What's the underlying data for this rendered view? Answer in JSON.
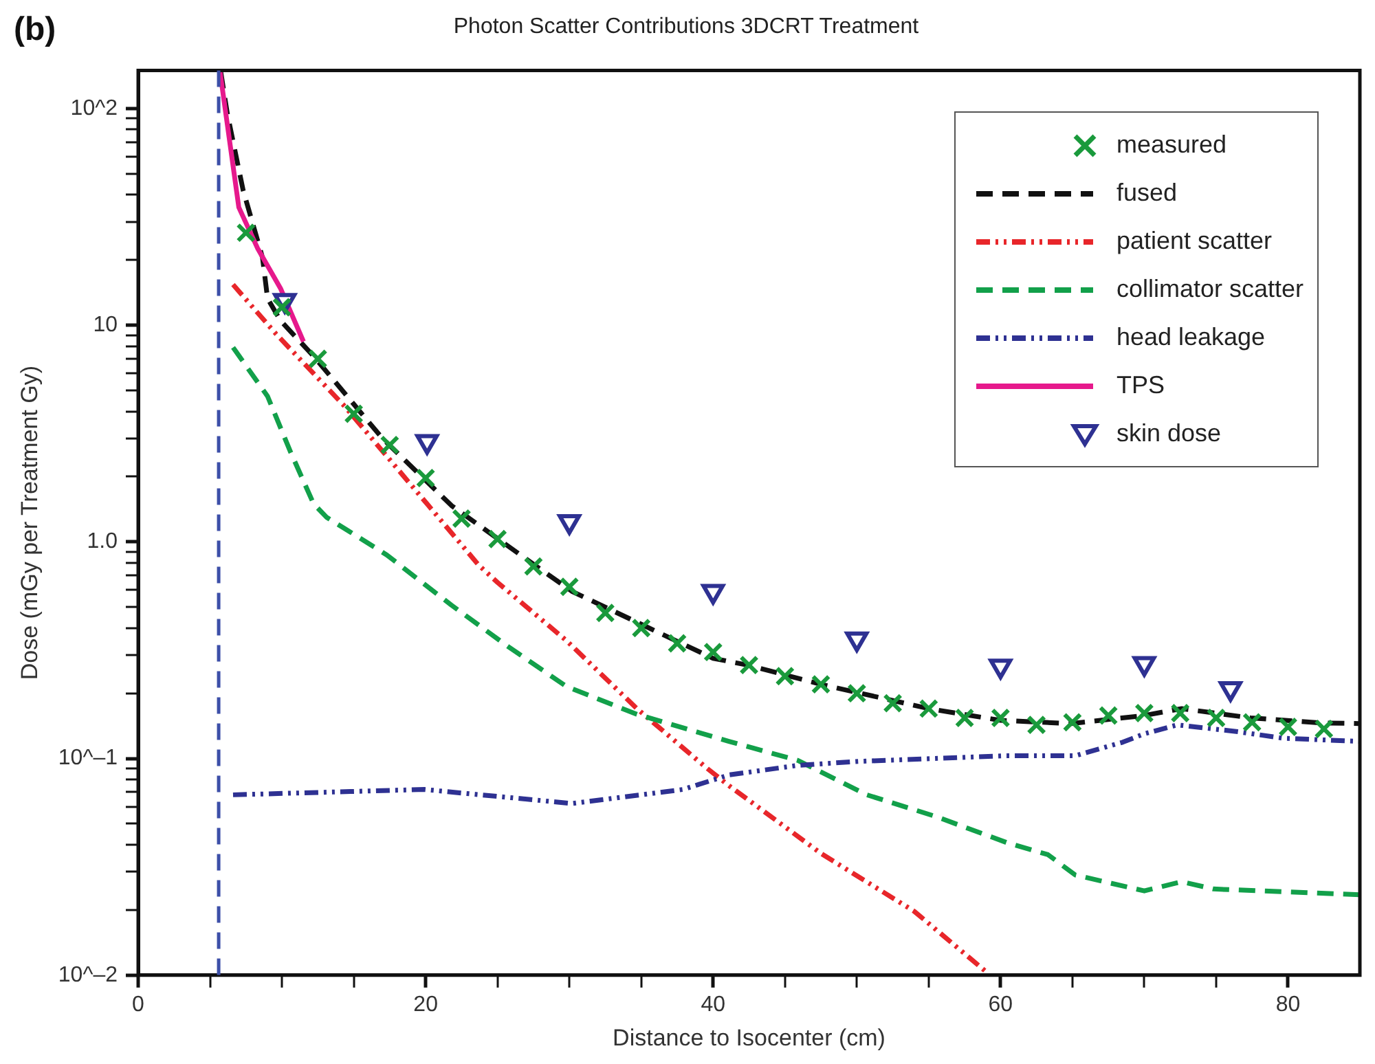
{
  "chart_data": {
    "type": "line",
    "title": "Photon Scatter Contributions 3DCRT Treatment",
    "xlabel": "Distance to Isocenter (cm)",
    "ylabel": "Dose (mGy per Treatment Gy)",
    "annotations": [
      "(b)"
    ],
    "log": "y",
    "grid": false,
    "legend": "top right",
    "xlim": [
      0,
      85
    ],
    "ylim": [
      0.01,
      150
    ],
    "xticks": [
      0,
      {
        "value": 5,
        "label": null
      },
      {
        "value": 10,
        "label": null
      },
      {
        "value": 15,
        "label": null
      },
      20,
      {
        "value": 25,
        "label": null
      },
      {
        "value": 30,
        "label": null
      },
      {
        "value": 35,
        "label": null
      },
      40,
      {
        "value": 45,
        "label": null
      },
      {
        "value": 50,
        "label": null
      },
      {
        "value": 55,
        "label": null
      },
      60,
      {
        "value": 65,
        "label": null
      },
      {
        "value": 70,
        "label": null
      },
      {
        "value": 75,
        "label": null
      },
      80
    ],
    "yticks": [
      {
        "value": 0.01,
        "label": "10^–2"
      },
      {
        "value": 0.02,
        "label": null
      },
      {
        "value": 0.03,
        "label": null
      },
      {
        "value": 0.04,
        "label": null
      },
      {
        "value": 0.05,
        "label": null
      },
      {
        "value": 0.06,
        "label": null
      },
      {
        "value": 0.07,
        "label": null
      },
      {
        "value": 0.08,
        "label": null
      },
      {
        "value": 0.09,
        "label": null
      },
      {
        "value": 0.1,
        "label": "10^–1"
      },
      {
        "value": 0.2,
        "label": null
      },
      {
        "value": 0.3,
        "label": null
      },
      {
        "value": 0.4,
        "label": null
      },
      {
        "value": 0.5,
        "label": null
      },
      {
        "value": 0.6,
        "label": null
      },
      {
        "value": 0.7,
        "label": null
      },
      {
        "value": 0.8,
        "label": null
      },
      {
        "value": 0.9,
        "label": null
      },
      {
        "value": 1,
        "label": "1.0"
      },
      {
        "value": 2,
        "label": null
      },
      {
        "value": 3,
        "label": null
      },
      {
        "value": 4,
        "label": null
      },
      {
        "value": 5,
        "label": null
      },
      {
        "value": 6,
        "label": null
      },
      {
        "value": 7,
        "label": null
      },
      {
        "value": 8,
        "label": null
      },
      {
        "value": 9,
        "label": null
      },
      {
        "value": 10,
        "label": "10"
      },
      {
        "value": 20,
        "label": null
      },
      {
        "value": 30,
        "label": null
      },
      {
        "value": 40,
        "label": null
      },
      {
        "value": 50,
        "label": null
      },
      {
        "value": 60,
        "label": null
      },
      {
        "value": 70,
        "label": null
      },
      {
        "value": 80,
        "label": null
      },
      {
        "value": 90,
        "label": null
      },
      {
        "value": 100,
        "label": "10^2"
      }
    ],
    "ref_lines": [
      {
        "axis": "x",
        "value": 5.6,
        "color": "#3c4fa8",
        "line_style": "dashed"
      }
    ],
    "series": [
      {
        "name": "measured",
        "type": "scatter",
        "marker": "cross",
        "color": "#1a9a3c",
        "x": [
          7.5,
          10,
          12.5,
          15,
          17.5,
          20,
          22.5,
          25,
          27.5,
          30,
          32.5,
          35,
          37.5,
          40,
          42.5,
          45,
          47.5,
          50,
          52.5,
          55,
          57.5,
          60,
          62.5,
          65,
          67.5,
          70,
          72.5,
          75,
          77.5,
          80,
          82.5
        ],
        "values": [
          26.7,
          12.1,
          7.0,
          3.9,
          2.8,
          1.97,
          1.28,
          1.03,
          0.77,
          0.62,
          0.47,
          0.4,
          0.34,
          0.31,
          0.27,
          0.24,
          0.22,
          0.2,
          0.18,
          0.17,
          0.154,
          0.154,
          0.143,
          0.147,
          0.158,
          0.162,
          0.162,
          0.154,
          0.147,
          0.14,
          0.137
        ]
      },
      {
        "name": "fused",
        "type": "line",
        "line_style": "dashed",
        "color": "#111111",
        "x": [
          5.75,
          6.2,
          7.3,
          8.65,
          9.0,
          9.9,
          12.2,
          17,
          21.8,
          27.6,
          30.2,
          40,
          42.4,
          47.5,
          55,
          60,
          64.9,
          70,
          72.6,
          77.4,
          82.3,
          85
        ],
        "values": [
          147,
          95,
          42,
          20.5,
          13.3,
          10.5,
          7.2,
          3.0,
          1.47,
          0.78,
          0.59,
          0.29,
          0.27,
          0.22,
          0.17,
          0.15,
          0.145,
          0.158,
          0.17,
          0.154,
          0.146,
          0.145
        ]
      },
      {
        "name": "patient scatter",
        "type": "line",
        "line_style": "dotted",
        "color": "#e8262a",
        "x": [
          6.6,
          9.6,
          14.4,
          20.2,
          23.7,
          25,
          29.8,
          34.7,
          39.5,
          41.1,
          47.5,
          54,
          58.9
        ],
        "values": [
          15.4,
          9.1,
          4.2,
          1.47,
          0.78,
          0.65,
          0.35,
          0.17,
          0.091,
          0.075,
          0.0365,
          0.0197,
          0.0105
        ]
      },
      {
        "name": "collimator scatter",
        "type": "line",
        "line_style": "dashed",
        "color": "#12a04a",
        "x": [
          6.6,
          9.0,
          10.6,
          12.2,
          13.1,
          17.3,
          21.8,
          25.7,
          29.8,
          34.7,
          41.1,
          45.9,
          50.7,
          55.5,
          60.4,
          63.3,
          65.2,
          70,
          72.6,
          74.8,
          85
        ],
        "values": [
          7.9,
          4.7,
          2.6,
          1.5,
          1.3,
          0.87,
          0.51,
          0.33,
          0.215,
          0.16,
          0.12,
          0.098,
          0.068,
          0.054,
          0.041,
          0.036,
          0.029,
          0.0245,
          0.027,
          0.025,
          0.0235
        ]
      },
      {
        "name": "head leakage",
        "type": "line",
        "line_style": "dotted",
        "color": "#2e3192",
        "x": [
          6.6,
          19.9,
          30.2,
          37.9,
          41.1,
          45.9,
          50.1,
          60.4,
          65.2,
          68.5,
          70,
          72.3,
          76.5,
          79.7,
          85
        ],
        "values": [
          0.068,
          0.072,
          0.062,
          0.072,
          0.084,
          0.093,
          0.097,
          0.103,
          0.103,
          0.119,
          0.13,
          0.143,
          0.133,
          0.124,
          0.12
        ]
      },
      {
        "name": "TPS",
        "type": "line",
        "line_style": "solid",
        "color": "#e6198c",
        "x": [
          5.7,
          7.0,
          8.3,
          9.9,
          11.5
        ],
        "values": [
          147,
          35,
          22.7,
          14.8,
          8.4
        ]
      },
      {
        "name": "skin dose",
        "type": "scatter",
        "marker": "triangle",
        "color": "#2e3192",
        "x": [
          10.2,
          20.1,
          30,
          40,
          50,
          60,
          70,
          76
        ],
        "values": [
          13,
          2.9,
          1.24,
          0.59,
          0.356,
          0.267,
          0.274,
          0.21
        ]
      }
    ]
  }
}
